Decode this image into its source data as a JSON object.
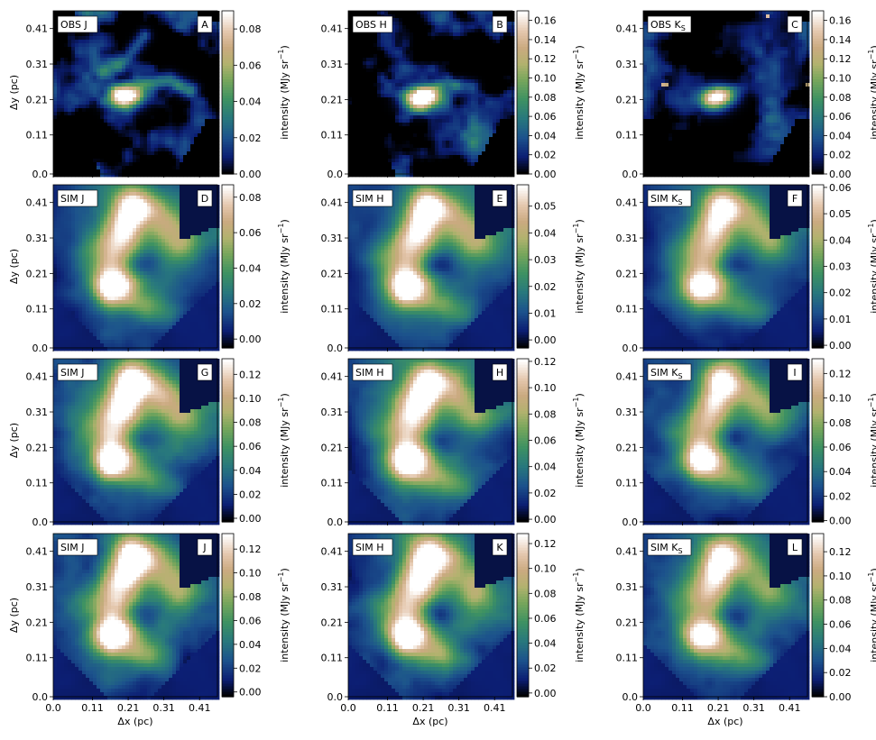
{
  "figure": {
    "x_axis_label": "Δx (pc)",
    "y_axis_label": "Δy (pc)",
    "colorbar_label_text": "intensity (MJy sr",
    "colorbar_label_exponent": "−1",
    "colorbar_label_close": ")",
    "x_tick_labels": [
      "0.0",
      "0.11",
      "0.21",
      "0.31",
      "0.41"
    ],
    "y_tick_labels": [
      "0.0",
      "0.11",
      "0.21",
      "0.31",
      "0.41"
    ],
    "colormap": "gist_earth",
    "axis_range_pc": [
      0.0,
      0.46
    ]
  },
  "chart_data": [
    {
      "type": "heatmap",
      "panel": "A",
      "label_main": "OBS J",
      "label_sub": "",
      "kind": "obs",
      "band": "J",
      "variant": 0,
      "colorbar": {
        "ticks": [
          "0.00",
          "0.02",
          "0.04",
          "0.06",
          "0.08"
        ],
        "min": 0.0,
        "max": 0.09
      }
    },
    {
      "type": "heatmap",
      "panel": "B",
      "label_main": "OBS H",
      "label_sub": "",
      "kind": "obs",
      "band": "H",
      "variant": 0,
      "colorbar": {
        "ticks": [
          "0.00",
          "0.02",
          "0.04",
          "0.06",
          "0.08",
          "0.10",
          "0.12",
          "0.14",
          "0.16"
        ],
        "min": 0.0,
        "max": 0.17
      }
    },
    {
      "type": "heatmap",
      "panel": "C",
      "label_main": "OBS K",
      "label_sub": "S",
      "kind": "obs",
      "band": "Ks",
      "variant": 0,
      "colorbar": {
        "ticks": [
          "0.00",
          "0.02",
          "0.04",
          "0.06",
          "0.08",
          "0.10",
          "0.12",
          "0.14",
          "0.16"
        ],
        "min": 0.0,
        "max": 0.17
      }
    },
    {
      "type": "heatmap",
      "panel": "D",
      "label_main": "SIM J",
      "label_sub": "",
      "kind": "sim",
      "band": "J",
      "variant": 1,
      "colorbar": {
        "ticks": [
          "0.00",
          "0.02",
          "0.04",
          "0.06",
          "0.08"
        ],
        "min": -0.005,
        "max": 0.087
      }
    },
    {
      "type": "heatmap",
      "panel": "E",
      "label_main": "SIM H",
      "label_sub": "",
      "kind": "sim",
      "band": "H",
      "variant": 1,
      "colorbar": {
        "ticks": [
          "0.00",
          "0.01",
          "0.02",
          "0.03",
          "0.04",
          "0.05"
        ],
        "min": -0.003,
        "max": 0.058
      }
    },
    {
      "type": "heatmap",
      "panel": "F",
      "label_main": "SIM K",
      "label_sub": "S",
      "kind": "sim",
      "band": "Ks",
      "variant": 1,
      "colorbar": {
        "ticks": [
          "0.00",
          "0.01",
          "0.02",
          "0.03",
          "0.04",
          "0.05",
          "0.06"
        ],
        "min": -0.001,
        "max": 0.061
      }
    },
    {
      "type": "heatmap",
      "panel": "G",
      "label_main": "SIM J",
      "label_sub": "",
      "kind": "sim",
      "band": "J",
      "variant": 2,
      "colorbar": {
        "ticks": [
          "0.00",
          "0.02",
          "0.04",
          "0.06",
          "0.08",
          "0.10",
          "0.12"
        ],
        "min": -0.003,
        "max": 0.133
      }
    },
    {
      "type": "heatmap",
      "panel": "H",
      "label_main": "SIM H",
      "label_sub": "",
      "kind": "sim",
      "band": "H",
      "variant": 2,
      "colorbar": {
        "ticks": [
          "0.00",
          "0.02",
          "0.04",
          "0.06",
          "0.08",
          "0.10",
          "0.12"
        ],
        "min": -0.002,
        "max": 0.122
      }
    },
    {
      "type": "heatmap",
      "panel": "I",
      "label_main": "SIM K",
      "label_sub": "S",
      "kind": "sim",
      "band": "Ks",
      "variant": 2,
      "colorbar": {
        "ticks": [
          "0.00",
          "0.02",
          "0.04",
          "0.06",
          "0.08",
          "0.10",
          "0.12"
        ],
        "min": -0.001,
        "max": 0.132
      }
    },
    {
      "type": "heatmap",
      "panel": "J",
      "label_main": "SIM J",
      "label_sub": "",
      "kind": "sim",
      "band": "J",
      "variant": 3,
      "colorbar": {
        "ticks": [
          "0.00",
          "0.02",
          "0.04",
          "0.06",
          "0.08",
          "0.10",
          "0.12"
        ],
        "min": -0.004,
        "max": 0.133
      }
    },
    {
      "type": "heatmap",
      "panel": "K",
      "label_main": "SIM H",
      "label_sub": "",
      "kind": "sim",
      "band": "H",
      "variant": 3,
      "colorbar": {
        "ticks": [
          "0.00",
          "0.02",
          "0.04",
          "0.06",
          "0.08",
          "0.10",
          "0.12"
        ],
        "min": -0.003,
        "max": 0.128
      }
    },
    {
      "type": "heatmap",
      "panel": "L",
      "label_main": "SIM K",
      "label_sub": "S",
      "kind": "sim",
      "band": "Ks",
      "variant": 3,
      "colorbar": {
        "ticks": [
          "0.00",
          "0.02",
          "0.04",
          "0.06",
          "0.08",
          "0.10",
          "0.12"
        ],
        "min": 0.0,
        "max": 0.135
      }
    }
  ]
}
